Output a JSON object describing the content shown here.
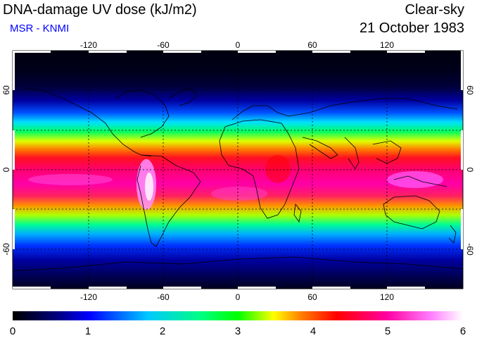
{
  "header": {
    "title": "DNA-damage UV dose (kJ/m2)",
    "credit": "MSR - KNMI",
    "credit_color": "#0000ff",
    "sky_condition": "Clear-sky",
    "date": "21 October 1983"
  },
  "map": {
    "projection": "equirectangular",
    "lon_range": [
      -180,
      180
    ],
    "lat_range": [
      -90,
      90
    ],
    "lon_tick_labels": [
      "-120",
      "-60",
      "0",
      "60",
      "120"
    ],
    "lat_tick_labels": [
      "60",
      "0",
      "-60"
    ],
    "gridlines": "dashed",
    "coastlines": true
  },
  "colorbar": {
    "min": 0,
    "max": 6,
    "tick_labels": [
      "0",
      "1",
      "2",
      "3",
      "4",
      "5",
      "6"
    ],
    "colors": [
      "#000000",
      "#000080",
      "#0000ff",
      "#00c8ff",
      "#00ff80",
      "#00ff00",
      "#ffff00",
      "#ff8000",
      "#ff0000",
      "#ff00a0",
      "#ff80ff",
      "#ffffff"
    ]
  }
}
